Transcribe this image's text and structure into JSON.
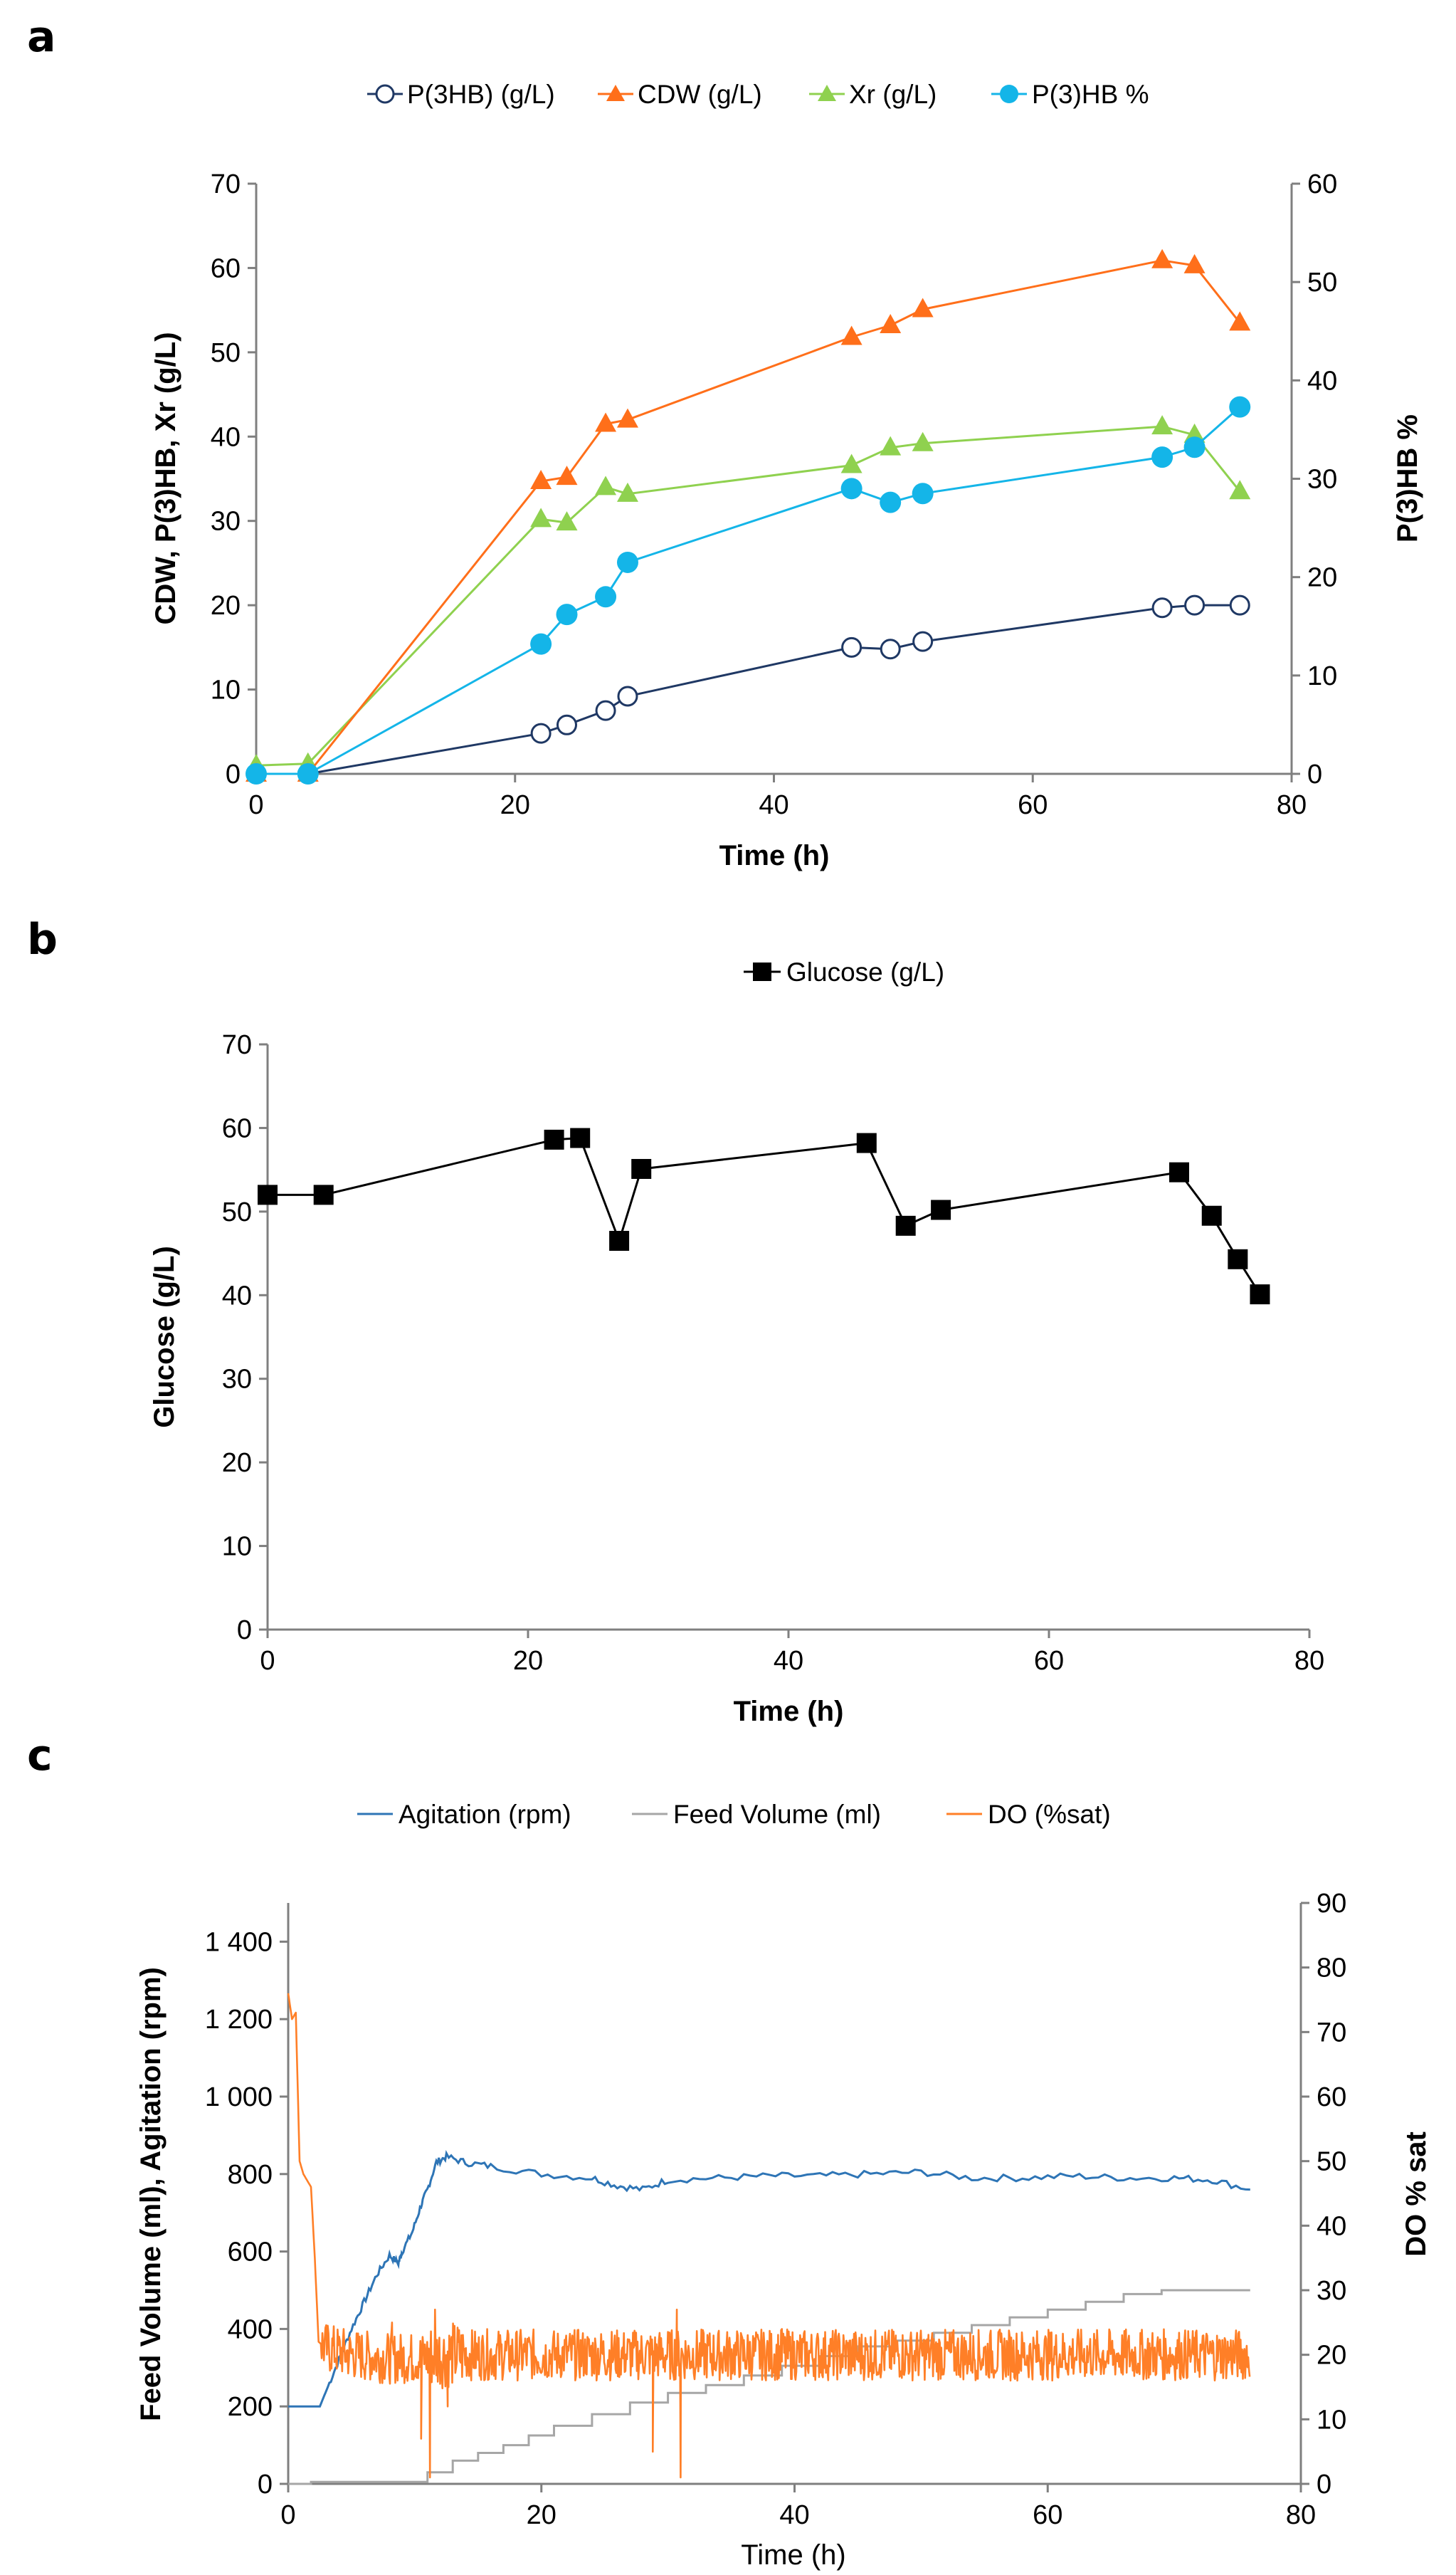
{
  "figure": {
    "panels": [
      "a",
      "b",
      "c"
    ]
  },
  "chart_data": [
    {
      "id": "a",
      "type": "line",
      "x_label": "Time (h)",
      "y_label_left": "CDW, P(3)HB, Xr (g/L)",
      "y_label_right": "P(3)HB %",
      "xlim": [
        0,
        80
      ],
      "ylim_left": [
        0,
        70
      ],
      "ylim_right": [
        0,
        60
      ],
      "x_ticks": [
        "0",
        "20",
        "40",
        "60",
        "80"
      ],
      "y_ticks_left": [
        "0",
        "10",
        "20",
        "30",
        "40",
        "50",
        "60",
        "70"
      ],
      "y_ticks_right": [
        "0",
        "10",
        "20",
        "30",
        "40",
        "50",
        "60"
      ],
      "series": [
        {
          "name": "P(3HB) (g/L)",
          "axis": "left",
          "color": "#1f3864",
          "marker": "open-circle",
          "x": [
            0,
            4,
            22,
            24,
            27,
            28.7,
            46,
            49,
            51.5,
            70,
            72.5,
            76
          ],
          "y": [
            0,
            0,
            4.8,
            5.8,
            7.5,
            9.2,
            15,
            14.8,
            15.7,
            19.7,
            20,
            20
          ]
        },
        {
          "name": "CDW (g/L)",
          "axis": "left",
          "color": "#ff6f1a",
          "marker": "triangle",
          "x": [
            0,
            4,
            22,
            24,
            27,
            28.7,
            46,
            49,
            51.5,
            70,
            72.5,
            76
          ],
          "y": [
            0,
            0,
            34.7,
            35.2,
            41.5,
            42,
            51.8,
            53.2,
            55.1,
            60.9,
            60.3,
            53.5
          ]
        },
        {
          "name": "Xr (g/L)",
          "axis": "left",
          "color": "#8fd14f",
          "marker": "triangle",
          "x": [
            0,
            4,
            22,
            24,
            27,
            28.7,
            46,
            49,
            51.5,
            70,
            72.5,
            76
          ],
          "y": [
            1,
            1.2,
            30.2,
            29.8,
            34,
            33.2,
            36.6,
            38.7,
            39.2,
            41.2,
            40.2,
            33.5
          ]
        },
        {
          "name": "P(3)HB %",
          "axis": "right",
          "color": "#14b5e8",
          "marker": "filled-circle",
          "x": [
            0,
            4,
            22,
            24,
            27,
            28.7,
            46,
            49,
            51.5,
            70,
            72.5,
            76
          ],
          "y": [
            0,
            0,
            13.2,
            16.2,
            18,
            21.5,
            29,
            27.6,
            28.5,
            32.2,
            33.2,
            37.3
          ]
        }
      ]
    },
    {
      "id": "b",
      "type": "line",
      "x_label": "Time (h)",
      "y_label": "Glucose (g/L)",
      "xlim": [
        0,
        80
      ],
      "ylim": [
        0,
        70
      ],
      "x_ticks": [
        "0",
        "20",
        "40",
        "60",
        "80"
      ],
      "y_ticks": [
        "0",
        "10",
        "20",
        "30",
        "40",
        "50",
        "60",
        "70"
      ],
      "series": [
        {
          "name": "Glucose (g/L)",
          "color": "#000000",
          "marker": "square",
          "x": [
            0,
            4.3,
            22,
            24,
            27,
            28.7,
            46,
            49,
            51.7,
            70,
            72.5,
            74.5,
            76.2
          ],
          "y": [
            52,
            52,
            58.6,
            58.8,
            46.5,
            55.1,
            58.2,
            48.3,
            50.2,
            54.7,
            49.5,
            44.3,
            40.1
          ]
        }
      ]
    },
    {
      "id": "c",
      "type": "line",
      "x_label": "Time (h)",
      "y_label_left": "Feed Volume (ml), Agitation (rpm)",
      "y_label_right": "DO % sat",
      "xlim": [
        0,
        80
      ],
      "ylim_left": [
        0,
        1500
      ],
      "ylim_right": [
        0,
        90
      ],
      "x_ticks": [
        "0",
        "20",
        "40",
        "60",
        "80"
      ],
      "y_ticks_left": [
        "0",
        "200",
        "400",
        "600",
        "800",
        "1 000",
        "1 200",
        "1 400"
      ],
      "y_ticks_right": [
        "0",
        "10",
        "20",
        "30",
        "40",
        "50",
        "60",
        "70",
        "80",
        "90"
      ],
      "series": [
        {
          "name": "Agitation (rpm)",
          "axis": "left",
          "color": "#2e75b6",
          "x": [
            0,
            2.5,
            3,
            4,
            5,
            6,
            7,
            8,
            8.7,
            9,
            9.8,
            10.5,
            11,
            11.7,
            12.5,
            14,
            16,
            20,
            24,
            26,
            28,
            30,
            34,
            38,
            42,
            46,
            50,
            54,
            58,
            62,
            66,
            70,
            73,
            76
          ],
          "y": [
            200,
            200,
            240,
            320,
            400,
            470,
            540,
            590,
            570,
            600,
            650,
            720,
            760,
            830,
            845,
            830,
            820,
            800,
            790,
            770,
            760,
            785,
            790,
            795,
            795,
            800,
            805,
            790,
            790,
            795,
            790,
            790,
            785,
            760
          ]
        },
        {
          "name": "Feed Volume (ml)",
          "axis": "left",
          "color": "#a6a6a6",
          "steps_x": [
            0,
            1.8,
            11,
            13,
            15,
            17,
            19,
            21,
            24,
            27,
            30,
            33,
            36,
            39,
            42,
            45,
            48,
            51,
            54,
            57,
            60,
            63,
            66,
            69,
            76
          ],
          "steps_y": [
            0,
            5,
            30,
            60,
            80,
            100,
            125,
            150,
            180,
            210,
            235,
            255,
            280,
            305,
            330,
            355,
            370,
            390,
            410,
            430,
            450,
            470,
            490,
            500,
            500
          ]
        },
        {
          "name": "DO (%sat)",
          "axis": "right",
          "color": "#ff7f27",
          "x": [
            0,
            0.3,
            0.6,
            0.9,
            1.2,
            1.8,
            2.1,
            2.4,
            3,
            5,
            8,
            10,
            12,
            20,
            30,
            40,
            50,
            60,
            70,
            76
          ],
          "y": [
            76,
            72,
            73,
            50,
            48,
            46,
            35,
            22,
            21,
            20,
            19.5,
            19.5,
            20,
            20,
            20,
            20,
            20,
            20,
            20,
            20
          ],
          "noise_amplitude": 4,
          "spikes": [
            [
              8.2,
              25
            ],
            [
              10.5,
              7
            ],
            [
              11.2,
              1
            ],
            [
              11.6,
              27
            ],
            [
              12.6,
              12
            ],
            [
              28.8,
              5
            ],
            [
              30.7,
              27
            ],
            [
              31,
              1
            ],
            [
              39,
              24
            ],
            [
              48,
              23
            ]
          ]
        }
      ]
    }
  ]
}
